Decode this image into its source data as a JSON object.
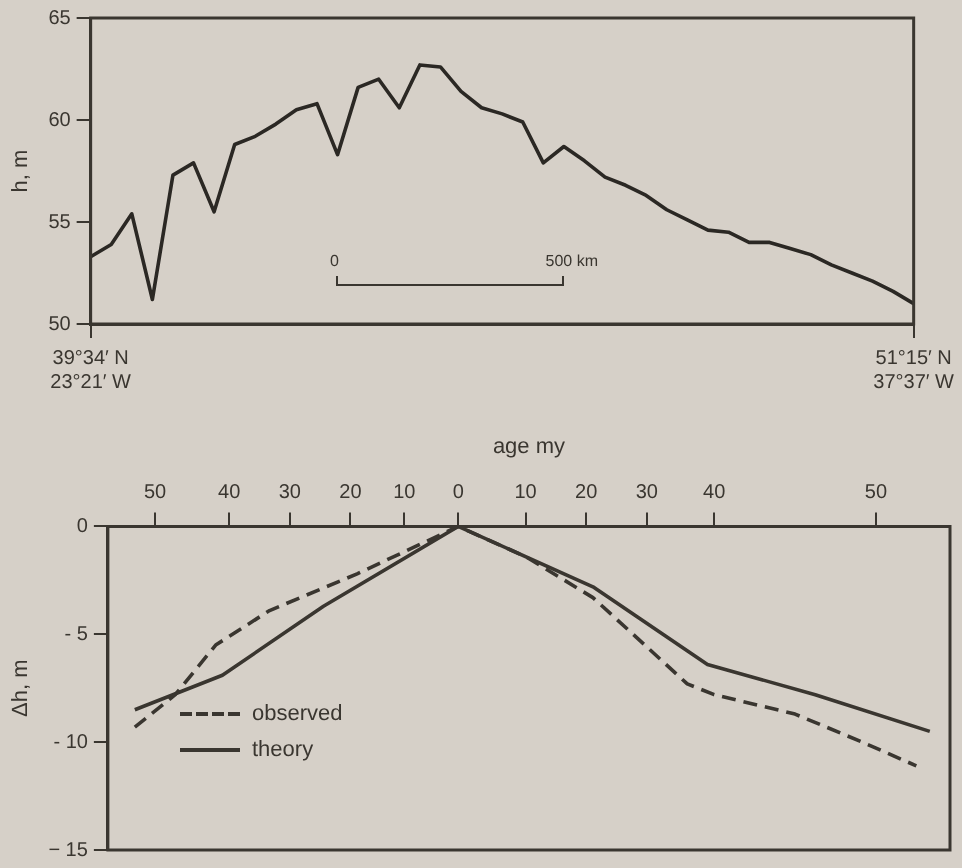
{
  "chart_data": [
    {
      "type": "line",
      "ylabel": "h, m",
      "categories": [
        "39°34′ N\n23°21′ W",
        null,
        null,
        null,
        null,
        null,
        null,
        null,
        null,
        null,
        null,
        null,
        null,
        null,
        null,
        null,
        null,
        null,
        null,
        null,
        null,
        null,
        null,
        null,
        null,
        null,
        null,
        null,
        null,
        null,
        null,
        null,
        null,
        null,
        null,
        null,
        null,
        null,
        null,
        null,
        "51°15′ N\n37°37′ W"
      ],
      "values": [
        53.3,
        53.9,
        55.4,
        51.2,
        57.3,
        57.9,
        55.5,
        58.8,
        59.2,
        59.8,
        60.5,
        60.8,
        58.3,
        61.6,
        62.0,
        60.6,
        62.7,
        62.6,
        61.4,
        60.6,
        60.3,
        59.9,
        57.9,
        58.7,
        58.0,
        57.2,
        56.8,
        56.3,
        55.6,
        55.1,
        54.6,
        54.5,
        54.0,
        54.0,
        53.7,
        53.4,
        52.9,
        52.5,
        52.1,
        51.6,
        51.0
      ],
      "color": "#2b2824",
      "ylim": [
        50,
        65
      ],
      "yticks": [
        50,
        55,
        60,
        65
      ],
      "marker": "none",
      "annotations": [
        "0",
        "500 km"
      ]
    },
    {
      "type": "line",
      "xlabel": "age my",
      "ylabel": "Δh, m",
      "categories": [
        null,
        null,
        null,
        null,
        null,
        null,
        null,
        "50",
        null,
        null,
        null,
        null,
        null,
        null,
        null,
        null,
        null,
        null,
        "40",
        null,
        null,
        null,
        null,
        null,
        null,
        null,
        null,
        "30",
        null,
        null,
        null,
        null,
        null,
        null,
        null,
        null,
        "20",
        null,
        null,
        null,
        null,
        null,
        null,
        null,
        "10",
        null,
        null,
        null,
        null,
        null,
        null,
        null,
        "0",
        null,
        null,
        null,
        null,
        null,
        null,
        null,
        null,
        null,
        "10",
        null,
        null,
        null,
        null,
        null,
        null,
        null,
        null,
        "20",
        null,
        null,
        null,
        null,
        null,
        null,
        null,
        null,
        "30",
        null,
        null,
        null,
        null,
        null,
        null,
        null,
        null,
        null,
        "40",
        null,
        null,
        null,
        null,
        null,
        null,
        null,
        null,
        null,
        null,
        null,
        null,
        null,
        null,
        null,
        null,
        null,
        null,
        null,
        null,
        null,
        null,
        null,
        "50",
        null,
        null,
        null,
        null,
        null,
        null,
        null,
        null,
        null,
        null,
        null
      ],
      "ylim": [
        -15,
        0
      ],
      "yticks": [
        {
          "value": -15,
          "label": "− 15"
        },
        {
          "value": -10,
          "label": "- 10"
        },
        {
          "value": -5,
          "label": "- 5"
        },
        0
      ],
      "marker": "none",
      "legend": "bottom left",
      "series": [
        {
          "name": "observed",
          "color": "#3a3630",
          "line_style": "dashed",
          "values": [
            null,
            null,
            null,
            null,
            -9.3,
            null,
            null,
            null,
            null,
            null,
            -7.8,
            null,
            null,
            null,
            null,
            null,
            -5.5,
            null,
            null,
            null,
            null,
            null,
            null,
            null,
            -3.9,
            null,
            null,
            null,
            null,
            null,
            null,
            null,
            null,
            null,
            null,
            null,
            null,
            -2.2,
            null,
            null,
            null,
            null,
            null,
            null,
            null,
            null,
            null,
            null,
            null,
            null,
            null,
            null,
            0,
            null,
            null,
            null,
            null,
            null,
            null,
            null,
            null,
            null,
            -1.4,
            null,
            null,
            null,
            null,
            null,
            null,
            null,
            null,
            null,
            -3.3,
            null,
            null,
            null,
            null,
            null,
            null,
            null,
            null,
            null,
            null,
            null,
            null,
            null,
            -7.3,
            null,
            null,
            null,
            -7.8,
            null,
            null,
            null,
            null,
            null,
            null,
            null,
            null,
            null,
            null,
            null,
            -8.7,
            null,
            null,
            null,
            null,
            null,
            null,
            null,
            null,
            null,
            -10.0,
            null,
            null,
            null,
            null,
            null,
            null,
            null,
            -11.1,
            null,
            null,
            null,
            null,
            null
          ]
        },
        {
          "name": "theory",
          "color": "#3a3630",
          "line_style": "solid",
          "values": [
            null,
            null,
            null,
            null,
            -8.5,
            null,
            null,
            null,
            null,
            null,
            null,
            null,
            null,
            null,
            null,
            null,
            null,
            -6.9,
            null,
            null,
            null,
            null,
            null,
            null,
            null,
            null,
            null,
            null,
            null,
            null,
            null,
            null,
            -3.7,
            null,
            null,
            null,
            null,
            null,
            null,
            null,
            null,
            null,
            null,
            null,
            null,
            null,
            null,
            null,
            null,
            null,
            null,
            null,
            0,
            null,
            null,
            null,
            null,
            null,
            null,
            null,
            null,
            null,
            null,
            null,
            null,
            null,
            null,
            null,
            null,
            null,
            null,
            null,
            -2.8,
            null,
            null,
            null,
            null,
            null,
            null,
            null,
            null,
            null,
            null,
            null,
            null,
            null,
            null,
            null,
            null,
            -6.4,
            null,
            null,
            null,
            null,
            null,
            null,
            null,
            null,
            null,
            null,
            null,
            null,
            null,
            null,
            null,
            -7.8,
            null,
            null,
            null,
            null,
            null,
            null,
            null,
            null,
            null,
            null,
            null,
            null,
            null,
            null,
            null,
            null,
            -9.5,
            null,
            null,
            null
          ]
        }
      ]
    }
  ]
}
